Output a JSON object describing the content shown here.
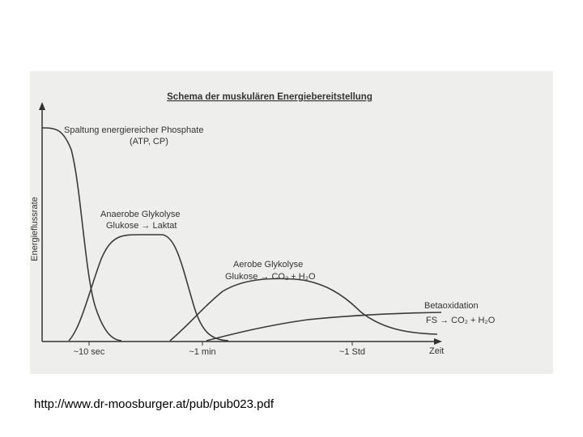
{
  "header": {
    "title": "Schema der muskulären Energiebereitstellung"
  },
  "axes": {
    "y_label": "Energieflussrate",
    "x_label": "Zeit",
    "x_ticks": [
      "~10 sec",
      "~1 min",
      "~1 Std"
    ]
  },
  "curves": [
    {
      "label_lines": [
        "Spaltung energiereicher Phosphate",
        "(ATP, CP)"
      ]
    },
    {
      "label_lines": [
        "Anaerobe Glykolyse",
        "Glukose → Laktat"
      ]
    },
    {
      "label_lines": [
        "Aerobe Glykolyse",
        "Glukose → CO₂ + H₂O"
      ]
    },
    {
      "label_lines": [
        "Betaoxidation",
        "FS → CO₂ + H₂O"
      ]
    }
  ],
  "footer": {
    "source": "http://www.dr-moosburger.at/pub/pub023.pdf"
  }
}
